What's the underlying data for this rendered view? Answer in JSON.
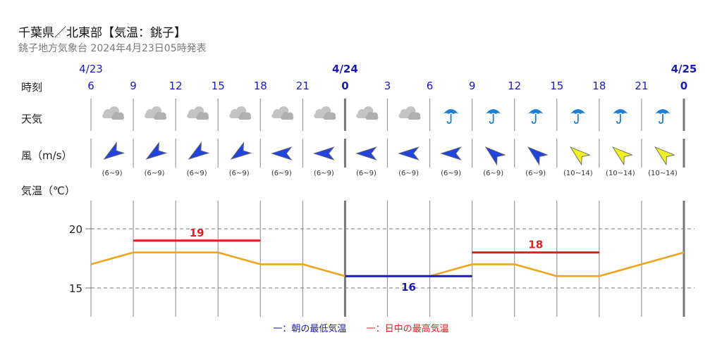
{
  "header": {
    "title": "千葉県／北東部【気温：銚子】",
    "subtitle": "銚子地方気象台 2024年4月23日05時発表"
  },
  "row_labels": {
    "time": "時刻",
    "weather": "天気",
    "wind": "風（m/s）",
    "temp": "気温（℃）"
  },
  "legend": {
    "min": "一：朝の最低気温",
    "max": "一：日中の最高気温"
  },
  "colors": {
    "series_line": "#f0a41e",
    "max_temp": "#e02020",
    "min_temp": "#1a1ab5",
    "date_label": "#1a1ab5",
    "wind_blue": "#2244dd",
    "wind_yellow": "#f2f020"
  },
  "chart_data": {
    "type": "line",
    "dates": [
      {
        "label": "4/23",
        "at_index": 0
      },
      {
        "label": "4/24",
        "at_index": 6
      },
      {
        "label": "4/25",
        "at_index": 14
      }
    ],
    "x": [
      "6",
      "9",
      "12",
      "15",
      "18",
      "21",
      "0",
      "3",
      "6",
      "9",
      "12",
      "15",
      "18",
      "21",
      "0"
    ],
    "series": [
      {
        "values": [
          17,
          18,
          18,
          18,
          17,
          17,
          16,
          16,
          16,
          17,
          17,
          16,
          16,
          17,
          18
        ]
      }
    ],
    "max_temps": [
      {
        "label": "19",
        "value": 19,
        "from_index": 1,
        "to_index": 4
      },
      {
        "label": "18",
        "value": 18,
        "from_index": 9,
        "to_index": 12
      }
    ],
    "min_temps": [
      {
        "label": "16",
        "value": 16,
        "from_index": 6,
        "to_index": 9
      }
    ],
    "yticks": [
      "20",
      "15"
    ],
    "ylim": [
      12.5,
      21.5
    ],
    "grid": true,
    "weather": [
      "cloudy",
      "cloudy",
      "cloudy",
      "cloudy",
      "cloudy",
      "cloudy",
      "cloudy",
      "cloudy",
      "rain",
      "rain",
      "rain",
      "rain",
      "rain",
      "rain"
    ],
    "wind": [
      {
        "speed": "(6~9)",
        "direction": "SW",
        "level": "blue"
      },
      {
        "speed": "(6~9)",
        "direction": "SW",
        "level": "blue"
      },
      {
        "speed": "(6~9)",
        "direction": "SW",
        "level": "blue"
      },
      {
        "speed": "(6~9)",
        "direction": "SW",
        "level": "blue"
      },
      {
        "speed": "(6~9)",
        "direction": "E",
        "level": "blue"
      },
      {
        "speed": "(6~9)",
        "direction": "E",
        "level": "blue"
      },
      {
        "speed": "(6~9)",
        "direction": "E",
        "level": "blue"
      },
      {
        "speed": "(6~9)",
        "direction": "E",
        "level": "blue"
      },
      {
        "speed": "(6~9)",
        "direction": "E",
        "level": "blue"
      },
      {
        "speed": "(6~9)",
        "direction": "NW",
        "level": "blue"
      },
      {
        "speed": "(6~9)",
        "direction": "NW",
        "level": "blue"
      },
      {
        "speed": "(10~14)",
        "direction": "NW",
        "level": "yellow"
      },
      {
        "speed": "(10~14)",
        "direction": "NW",
        "level": "yellow"
      },
      {
        "speed": "(10~14)",
        "direction": "NW",
        "level": "yellow"
      }
    ]
  }
}
